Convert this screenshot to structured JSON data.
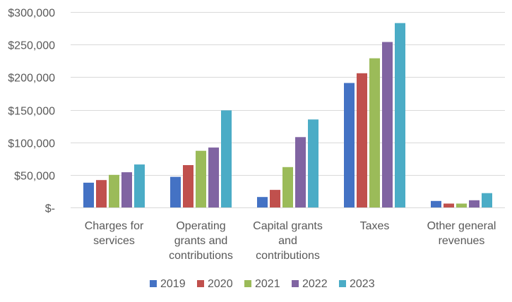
{
  "chart_data": {
    "type": "bar",
    "title": "",
    "xlabel": "",
    "ylabel": "",
    "categories": [
      [
        "Charges for",
        "services"
      ],
      [
        "Operating",
        "grants and",
        "contributions"
      ],
      [
        "Capital grants",
        "and",
        "contributions"
      ],
      [
        "Taxes"
      ],
      [
        "Other general",
        "revenues"
      ]
    ],
    "series": [
      {
        "name": "2019",
        "color": "#4472c4",
        "values": [
          38000,
          47000,
          16000,
          191000,
          10000
        ]
      },
      {
        "name": "2020",
        "color": "#c0504d",
        "values": [
          42000,
          65000,
          27000,
          206000,
          6000
        ]
      },
      {
        "name": "2021",
        "color": "#9bbb59",
        "values": [
          50000,
          87000,
          62000,
          229000,
          6000
        ]
      },
      {
        "name": "2022",
        "color": "#8064a2",
        "values": [
          54000,
          92000,
          108000,
          254000,
          11000
        ]
      },
      {
        "name": "2023",
        "color": "#4bacc6",
        "values": [
          66000,
          149000,
          135000,
          283000,
          22000
        ]
      }
    ],
    "ylim": [
      0,
      300000
    ],
    "yticks": [
      0,
      50000,
      100000,
      150000,
      200000,
      250000,
      300000
    ],
    "ytick_labels": [
      "$-",
      "$50,000",
      "$100,000",
      "$150,000",
      "$200,000",
      "$250,000",
      "$300,000"
    ],
    "grid": true,
    "legend_position": "bottom"
  }
}
